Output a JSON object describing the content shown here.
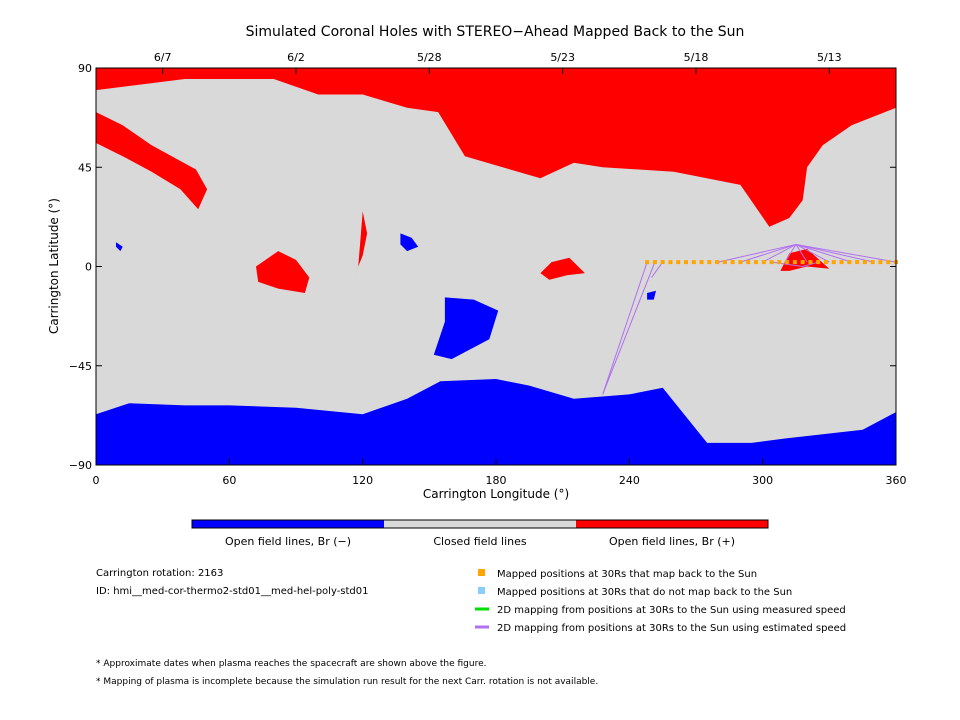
{
  "title": "Simulated Coronal Holes with STEREO−Ahead Mapped Back to the Sun",
  "colors": {
    "open_neg": "#0000ff",
    "closed": "#d9d9d9",
    "open_pos": "#ff0000",
    "mapped": "#ffa500",
    "unmapped": "#87cefa",
    "measured": "#00dd00",
    "estimated": "#b070f0"
  },
  "chart_data": {
    "type": "heatmap",
    "xlabel": "Carrington Longitude (°)",
    "ylabel": "Carrington Latitude (°)",
    "xlim": [
      0,
      360
    ],
    "ylim": [
      -90,
      90
    ],
    "xticks": [
      0,
      60,
      120,
      180,
      240,
      300,
      360
    ],
    "yticks": [
      -90,
      -45,
      0,
      45,
      90
    ],
    "top_axis_dates": [
      {
        "label": "6/7",
        "lon": 30
      },
      {
        "label": "6/2",
        "lon": 90
      },
      {
        "label": "5/28",
        "lon": 150
      },
      {
        "label": "5/23",
        "lon": 210
      },
      {
        "label": "5/18",
        "lon": 270
      },
      {
        "label": "5/13",
        "lon": 330
      }
    ],
    "colorbar": [
      "Open field lines, Br (−)",
      "Closed field lines",
      "Open field lines, Br (+)"
    ],
    "regions": [
      {
        "label": "Open field lines, Br (+)",
        "lon_lat": [
          [
            0,
            90
          ],
          [
            360,
            90
          ],
          [
            360,
            72
          ],
          [
            340,
            64
          ],
          [
            327,
            55
          ],
          [
            320,
            45
          ],
          [
            318,
            30
          ],
          [
            312,
            22
          ],
          [
            303,
            18
          ],
          [
            290,
            37
          ],
          [
            260,
            43
          ],
          [
            228,
            45
          ],
          [
            215,
            47
          ],
          [
            200,
            40
          ],
          [
            166,
            50
          ],
          [
            154,
            70
          ],
          [
            140,
            72
          ],
          [
            120,
            78
          ],
          [
            100,
            78
          ],
          [
            80,
            85
          ],
          [
            40,
            85
          ],
          [
            0,
            80
          ]
        ]
      },
      {
        "label": "Open field lines, Br (+)",
        "lon_lat": [
          [
            0,
            70
          ],
          [
            12,
            64
          ],
          [
            25,
            55
          ],
          [
            45,
            44
          ],
          [
            50,
            35
          ],
          [
            46,
            26
          ],
          [
            38,
            35
          ],
          [
            25,
            43
          ],
          [
            12,
            50
          ],
          [
            0,
            56
          ]
        ]
      },
      {
        "label": "Open field lines, Br (+)",
        "lon_lat": [
          [
            72,
            0
          ],
          [
            82,
            7
          ],
          [
            90,
            3
          ],
          [
            96,
            -5
          ],
          [
            94,
            -12
          ],
          [
            82,
            -10
          ],
          [
            73,
            -7
          ]
        ]
      },
      {
        "label": "Open field lines, Br (+)",
        "lon_lat": [
          [
            120,
            25
          ],
          [
            122,
            15
          ],
          [
            120,
            5
          ],
          [
            116,
            -5
          ],
          [
            118,
            0
          ],
          [
            119,
            12
          ]
        ]
      },
      {
        "label": "Open field lines, Br (+)",
        "lon_lat": [
          [
            200,
            -3
          ],
          [
            205,
            2
          ],
          [
            213,
            4
          ],
          [
            220,
            -3
          ],
          [
            212,
            -4
          ],
          [
            204,
            -6
          ]
        ]
      },
      {
        "label": "Open field lines, Br (+)",
        "lon_lat": [
          [
            308,
            -2
          ],
          [
            312,
            6
          ],
          [
            320,
            8
          ],
          [
            330,
            -1
          ],
          [
            320,
            0
          ],
          [
            312,
            -2
          ]
        ]
      },
      {
        "label": "Open field lines, Br (−)",
        "lon_lat": [
          [
            0,
            -90
          ],
          [
            360,
            -90
          ],
          [
            360,
            -66
          ],
          [
            345,
            -74
          ],
          [
            310,
            -78
          ],
          [
            295,
            -80
          ],
          [
            275,
            -80
          ],
          [
            255,
            -55
          ],
          [
            240,
            -58
          ],
          [
            215,
            -60
          ],
          [
            195,
            -54
          ],
          [
            180,
            -51
          ],
          [
            155,
            -52
          ],
          [
            140,
            -60
          ],
          [
            120,
            -67
          ],
          [
            90,
            -64
          ],
          [
            60,
            -63
          ],
          [
            40,
            -63
          ],
          [
            15,
            -62
          ],
          [
            0,
            -67
          ]
        ]
      },
      {
        "label": "Open field lines, Br (−)",
        "lon_lat": [
          [
            157,
            -14
          ],
          [
            170,
            -15
          ],
          [
            181,
            -20
          ],
          [
            177,
            -33
          ],
          [
            160,
            -42
          ],
          [
            152,
            -40
          ],
          [
            157,
            -25
          ]
        ]
      },
      {
        "label": "Open field lines, Br (−)",
        "lon_lat": [
          [
            137,
            15
          ],
          [
            142,
            13
          ],
          [
            145,
            9
          ],
          [
            140,
            7
          ],
          [
            137,
            10
          ]
        ]
      },
      {
        "label": "Open field lines, Br (−)",
        "lon_lat": [
          [
            9,
            11
          ],
          [
            12,
            9
          ],
          [
            11,
            7
          ],
          [
            9,
            9
          ]
        ]
      },
      {
        "label": "Open field lines, Br (−)",
        "lon_lat": [
          [
            248,
            -12
          ],
          [
            252,
            -11
          ],
          [
            251,
            -15
          ],
          [
            248,
            -15
          ]
        ]
      }
    ],
    "mapped_points": [
      [
        248,
        2
      ],
      [
        251.5,
        2
      ],
      [
        255,
        2
      ],
      [
        258.5,
        2
      ],
      [
        262,
        2
      ],
      [
        265.5,
        2
      ],
      [
        269,
        2
      ],
      [
        272.5,
        2
      ],
      [
        276,
        2
      ],
      [
        279.5,
        2
      ],
      [
        283,
        2
      ],
      [
        286.5,
        2
      ],
      [
        290,
        2
      ],
      [
        293.5,
        2
      ],
      [
        297,
        2
      ],
      [
        300.5,
        2
      ],
      [
        304,
        2
      ],
      [
        307.5,
        2
      ],
      [
        311,
        2
      ],
      [
        314.5,
        2
      ],
      [
        318,
        2
      ],
      [
        321.5,
        2
      ],
      [
        325,
        2
      ],
      [
        328.5,
        2
      ],
      [
        332,
        2
      ],
      [
        335.5,
        2
      ],
      [
        339,
        2
      ],
      [
        342.5,
        2
      ],
      [
        346,
        2
      ],
      [
        349.5,
        2
      ],
      [
        353,
        2
      ],
      [
        356.5,
        2
      ],
      [
        360,
        2
      ]
    ],
    "mapping_lines": [
      {
        "type": "estimated",
        "from": [
          248,
          2
        ],
        "to": [
          228,
          -58
        ]
      },
      {
        "type": "estimated",
        "from": [
          251.5,
          2
        ],
        "to": [
          228,
          -58
        ]
      },
      {
        "type": "estimated",
        "from": [
          255,
          2
        ],
        "to": [
          250,
          -5
        ]
      },
      {
        "type": "estimated",
        "from": [
          280,
          2
        ],
        "to": [
          315,
          10
        ]
      },
      {
        "type": "estimated",
        "from": [
          290,
          2
        ],
        "to": [
          315,
          10
        ]
      },
      {
        "type": "estimated",
        "from": [
          300,
          2
        ],
        "to": [
          315,
          10
        ]
      },
      {
        "type": "estimated",
        "from": [
          310,
          2
        ],
        "to": [
          315,
          10
        ]
      },
      {
        "type": "estimated",
        "from": [
          320,
          2
        ],
        "to": [
          315,
          10
        ]
      },
      {
        "type": "estimated",
        "from": [
          330,
          2
        ],
        "to": [
          315,
          10
        ]
      },
      {
        "type": "estimated",
        "from": [
          340,
          2
        ],
        "to": [
          315,
          10
        ]
      },
      {
        "type": "estimated",
        "from": [
          350,
          2
        ],
        "to": [
          315,
          10
        ]
      },
      {
        "type": "estimated",
        "from": [
          360,
          2
        ],
        "to": [
          315,
          10
        ]
      },
      {
        "type": "estimated",
        "from": [
          304,
          2
        ],
        "to": [
          318,
          0
        ]
      },
      {
        "type": "estimated",
        "from": [
          325,
          2
        ],
        "to": [
          318,
          0
        ]
      }
    ],
    "carrington_rotation_label": "Carrington rotation: 2163",
    "run_id_label": "ID: hmi__med-cor-thermo2-std01__med-hel-poly-std01",
    "legend": [
      {
        "label": "Mapped positions at 30Rs that map back to the Sun",
        "kind": "square",
        "color": "#ffa500"
      },
      {
        "label": "Mapped positions at 30Rs that do not map back to the Sun",
        "kind": "square",
        "color": "#87cefa"
      },
      {
        "label": "2D mapping from positions at 30Rs to the Sun using measured speed",
        "kind": "line",
        "color": "#00dd00"
      },
      {
        "label": "2D mapping from positions at 30Rs to the Sun using estimated speed",
        "kind": "line",
        "color": "#b070f0"
      }
    ],
    "footnotes": [
      "* Approximate dates when plasma reaches the spacecraft are shown above the figure.",
      "* Mapping of plasma is incomplete because the simulation run result for the next Carr. rotation is not available."
    ]
  }
}
